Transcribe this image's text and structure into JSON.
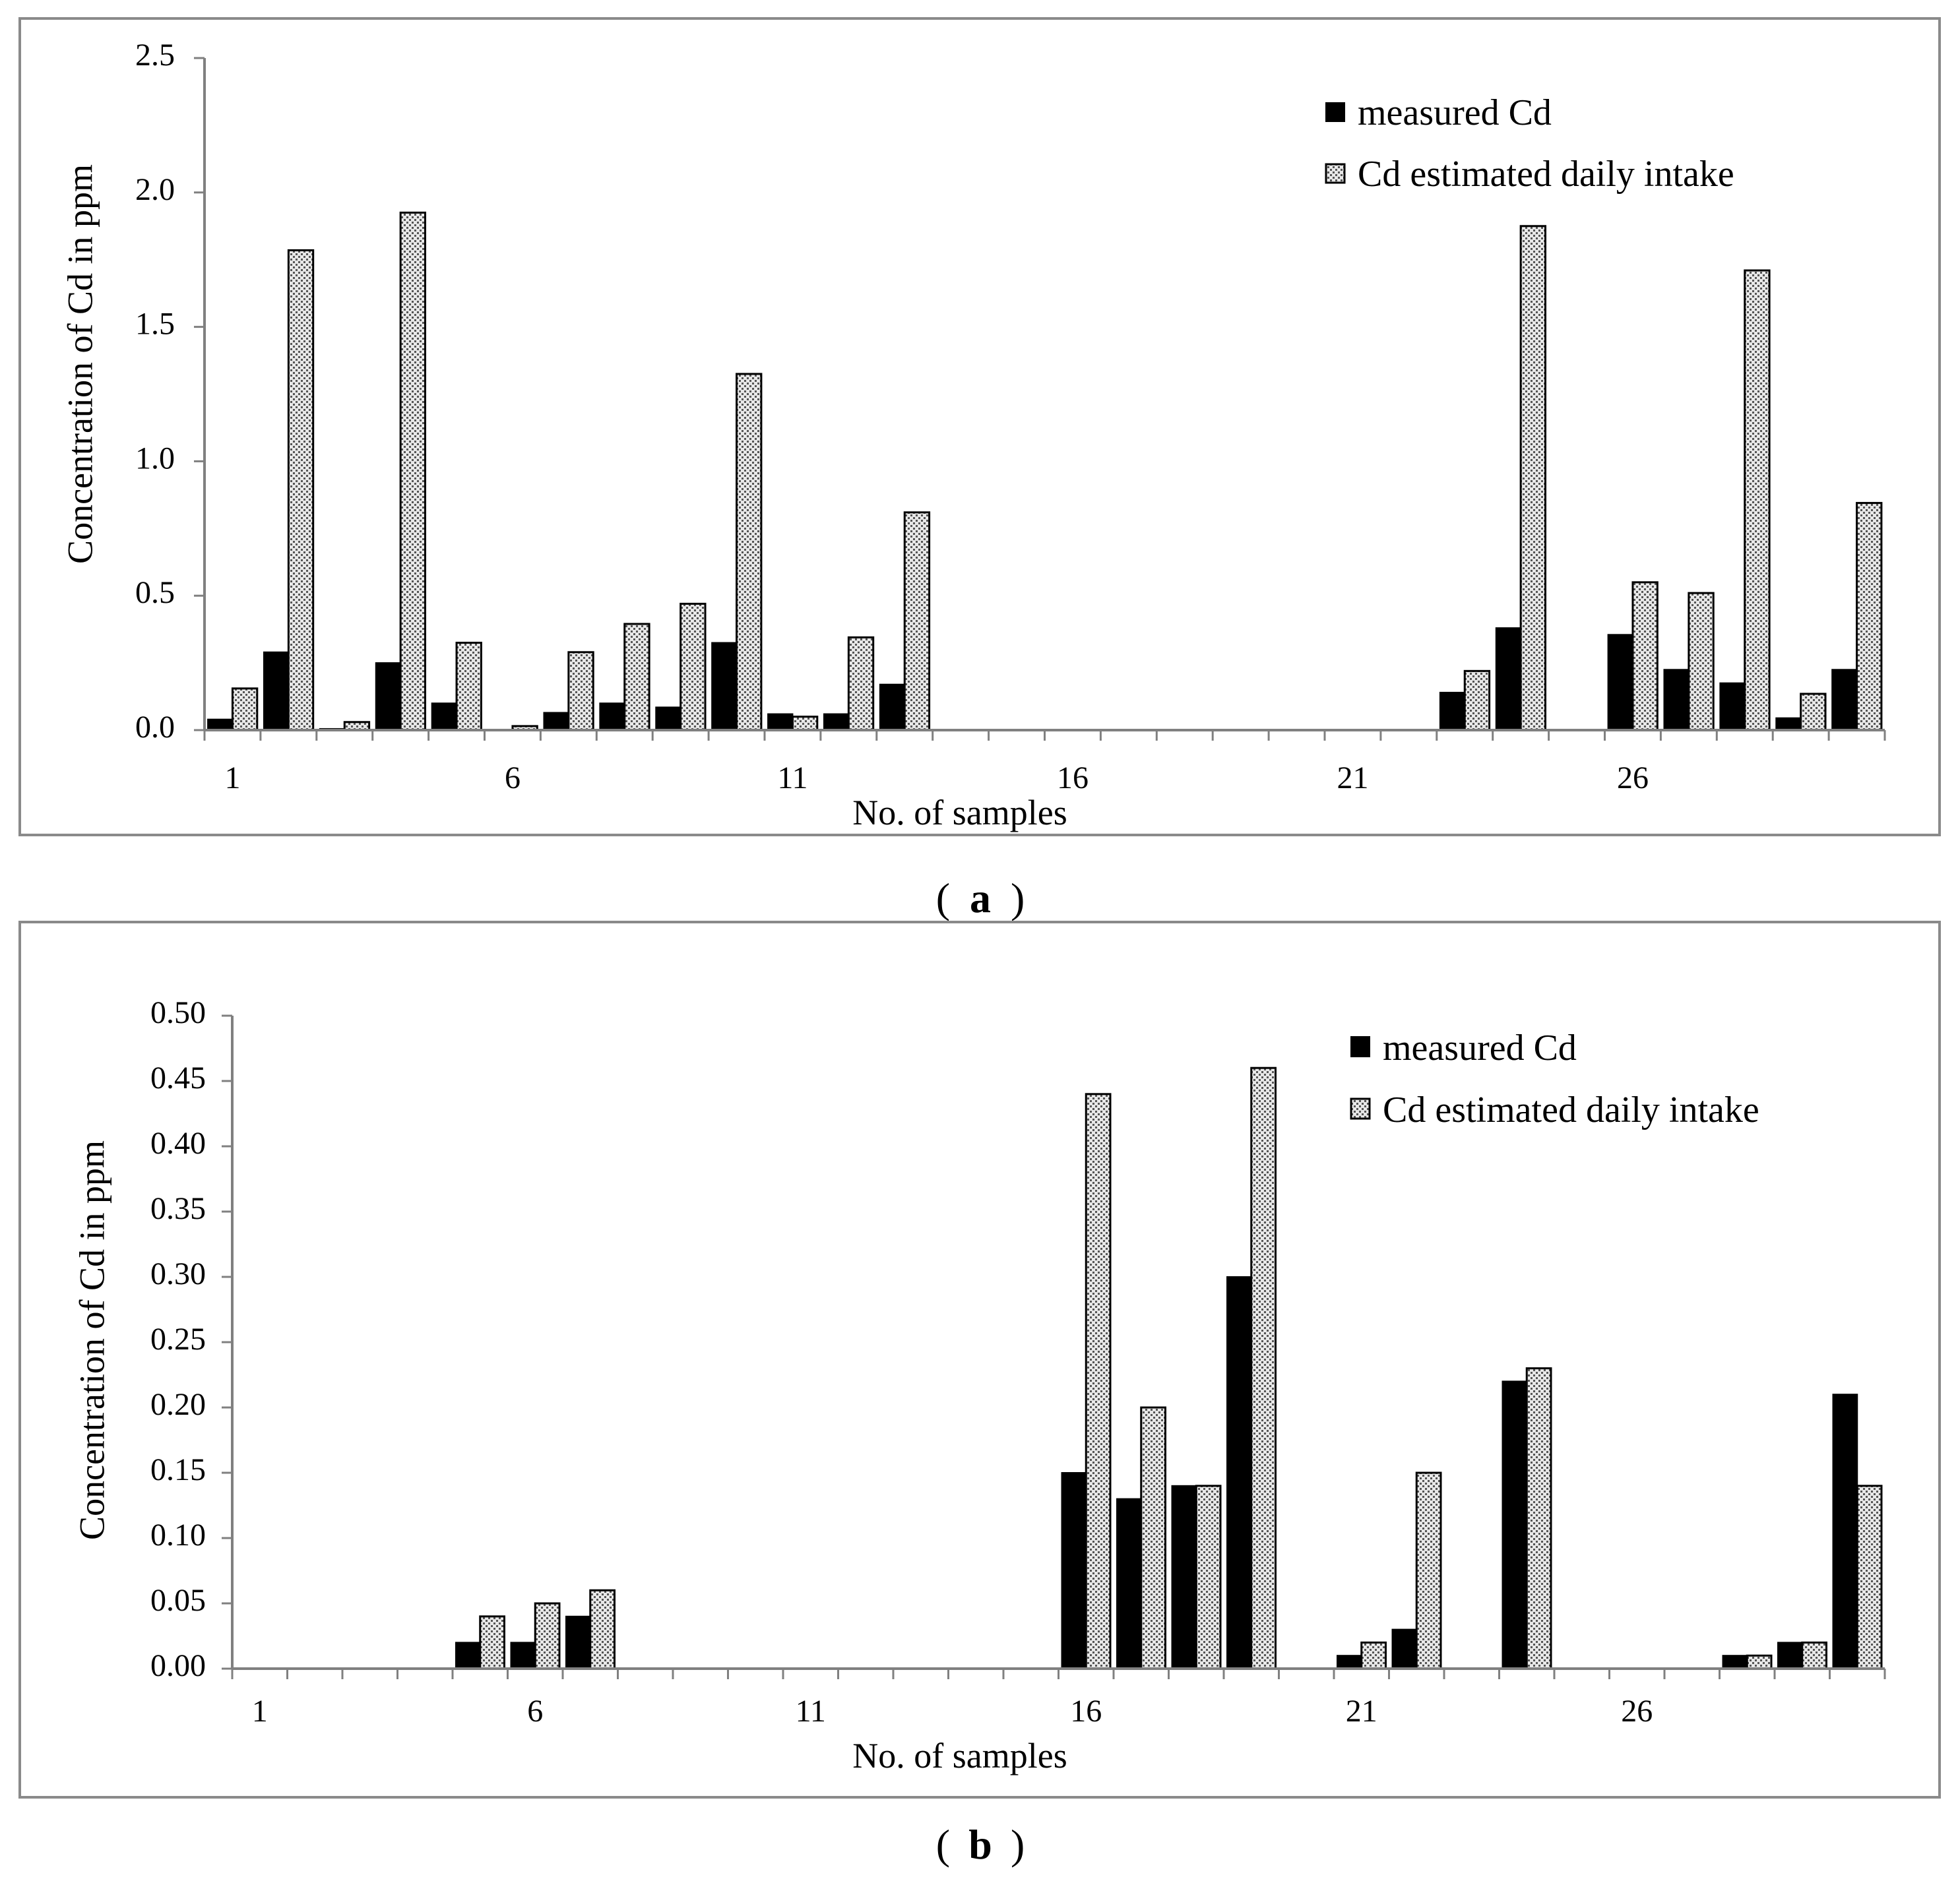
{
  "chart_data": [
    {
      "id": "a",
      "type": "bar",
      "panel_label": "a",
      "xlabel": "No. of samples",
      "ylabel": "Concentration of Cd in ppm",
      "ylim": [
        0,
        2.5
      ],
      "y_ticks": [
        "0.0",
        "0.5",
        "1.0",
        "1.5",
        "2.0",
        "2.5"
      ],
      "x_tick_labels": [
        "1",
        "6",
        "11",
        "16",
        "21",
        "26"
      ],
      "categories": [
        1,
        2,
        3,
        4,
        5,
        6,
        7,
        8,
        9,
        10,
        11,
        12,
        13,
        14,
        15,
        16,
        17,
        18,
        19,
        20,
        21,
        22,
        23,
        24,
        25,
        26,
        27,
        28,
        29,
        30
      ],
      "legend_position": "top-right",
      "series": [
        {
          "name": "measured Cd",
          "values": [
            0.04,
            0.29,
            0.005,
            0.25,
            0.1,
            0,
            0.065,
            0.1,
            0.085,
            0.325,
            0.06,
            0.06,
            0.17,
            0,
            0,
            0,
            0,
            0,
            0,
            0,
            0,
            0,
            0.14,
            0.38,
            0,
            0.355,
            0.225,
            0.175,
            0.045,
            0.225
          ]
        },
        {
          "name": "Cd estimated daily intake",
          "values": [
            0.155,
            1.785,
            0.03,
            1.925,
            0.325,
            0.015,
            0.29,
            0.395,
            0.47,
            1.325,
            0.05,
            0.345,
            0.81,
            0,
            0,
            0,
            0,
            0,
            0,
            0,
            0,
            0,
            0.22,
            1.875,
            0,
            0.55,
            0.51,
            1.71,
            0.135,
            0.845
          ]
        }
      ]
    },
    {
      "id": "b",
      "type": "bar",
      "panel_label": "b",
      "xlabel": "No. of samples",
      "ylabel": "Concentration of Cd in ppm",
      "ylim": [
        0,
        0.5
      ],
      "y_ticks": [
        "0.00",
        "0.05",
        "0.10",
        "0.15",
        "0.20",
        "0.25",
        "0.30",
        "0.35",
        "0.40",
        "0.45",
        "0.50"
      ],
      "x_tick_labels": [
        "1",
        "6",
        "11",
        "16",
        "21",
        "26"
      ],
      "categories": [
        1,
        2,
        3,
        4,
        5,
        6,
        7,
        8,
        9,
        10,
        11,
        12,
        13,
        14,
        15,
        16,
        17,
        18,
        19,
        20,
        21,
        22,
        23,
        24,
        25,
        26,
        27,
        28,
        29,
        30
      ],
      "legend_position": "top-right",
      "series": [
        {
          "name": "measured Cd",
          "values": [
            0,
            0,
            0,
            0,
            0.02,
            0.02,
            0.04,
            0,
            0,
            0,
            0,
            0,
            0,
            0,
            0,
            0.15,
            0.13,
            0.14,
            0.3,
            0,
            0.01,
            0.03,
            0,
            0.22,
            0,
            0,
            0,
            0.01,
            0.02,
            0.21
          ]
        },
        {
          "name": "Cd estimated daily intake",
          "values": [
            0,
            0,
            0,
            0,
            0.04,
            0.05,
            0.06,
            0,
            0,
            0,
            0,
            0,
            0,
            0,
            0,
            0.44,
            0.2,
            0.14,
            0.46,
            0,
            0.02,
            0.15,
            0,
            0.23,
            0,
            0,
            0,
            0.01,
            0.02,
            0.14
          ]
        }
      ]
    }
  ]
}
